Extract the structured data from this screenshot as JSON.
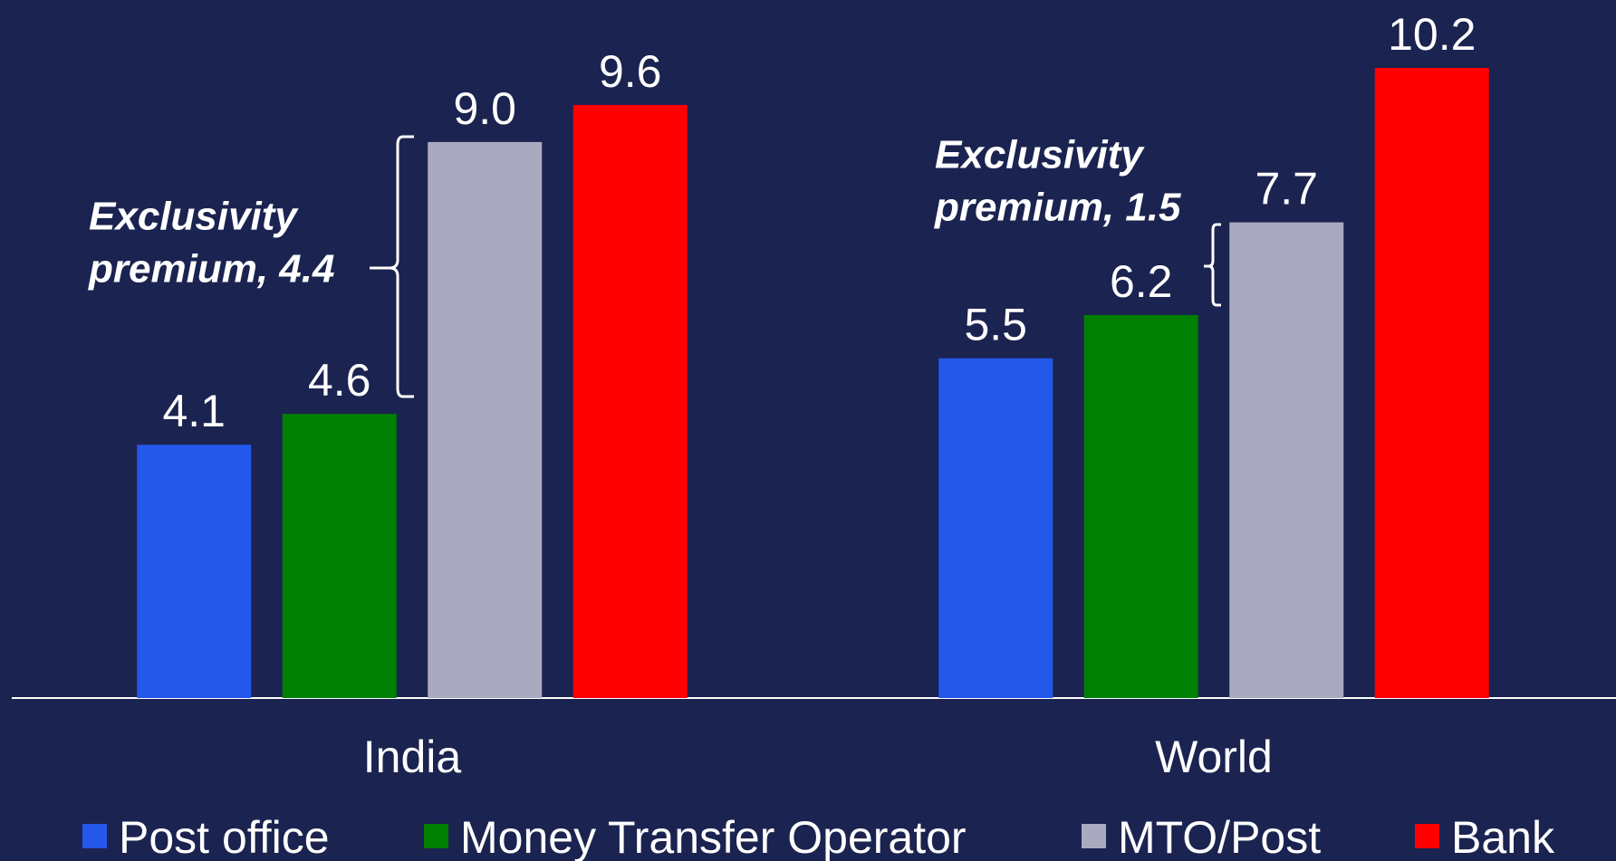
{
  "chart_data": {
    "type": "bar",
    "categories": [
      "India",
      "World"
    ],
    "series": [
      {
        "name": "Post office",
        "color": "#2358ea",
        "values": [
          4.1,
          5.5
        ],
        "value_labels": [
          "4.1",
          "5.5"
        ]
      },
      {
        "name": "Money Transfer Operator",
        "color": "#007f00",
        "values": [
          4.6,
          6.2
        ],
        "value_labels": [
          "4.6",
          "6.2"
        ]
      },
      {
        "name": "MTO/Post",
        "color": "#a9aac0",
        "values": [
          9.0,
          7.7
        ],
        "value_labels": [
          "9.0",
          "7.7"
        ]
      },
      {
        "name": "Bank",
        "color": "#ff0000",
        "values": [
          9.6,
          10.2
        ],
        "value_labels": [
          "9.6",
          "10.2"
        ]
      }
    ],
    "annotations": [
      {
        "lines": [
          "Exclusivity",
          "premium, 4.4"
        ]
      },
      {
        "lines": [
          "Exclusivity",
          "premium, 1.5"
        ]
      }
    ],
    "legend": "bottom"
  }
}
